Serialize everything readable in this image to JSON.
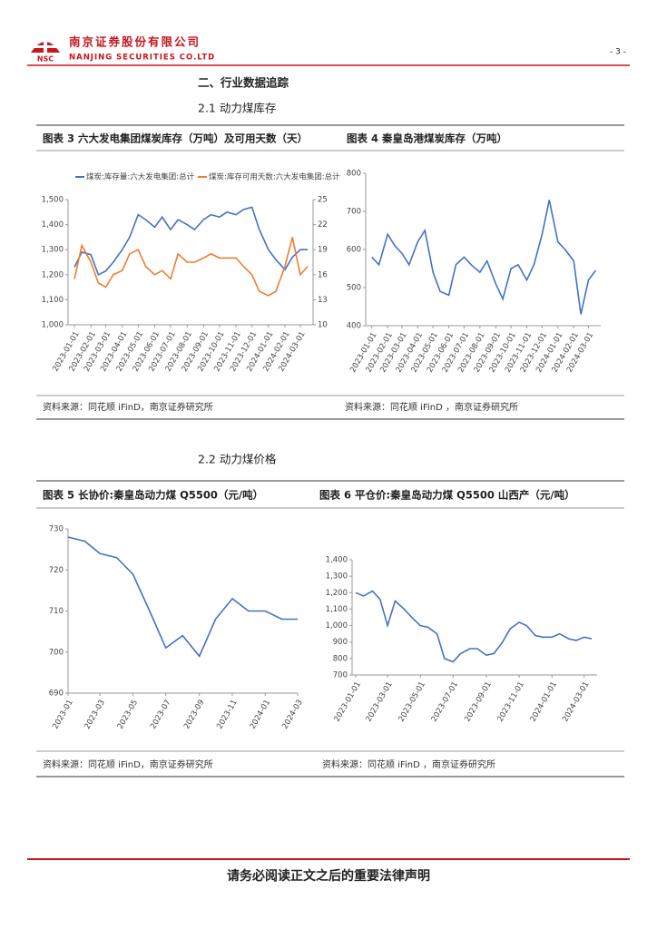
{
  "header": {
    "logo_text": "NSC",
    "company": "南京证券股份有限公司",
    "company_en": "NANJING SECURITIES CO.LTD",
    "page": "- 3 -"
  },
  "section": "二、行业数据追踪",
  "subsections": [
    "2.1 动力煤库存",
    "2.2 动力煤价格"
  ],
  "footer": "请务必阅读正文之后的重要法律声明",
  "chart_data": [
    {
      "type": "line",
      "title": "图表 3  六大发电集团煤炭库存（万吨）及可用天数（天）",
      "source": "资料来源：同花顺 iFinD，南京证券研究所",
      "x": [
        "2023-01-01",
        "2023-01-15",
        "2023-02-01",
        "2023-02-15",
        "2023-03-01",
        "2023-03-15",
        "2023-04-01",
        "2023-04-15",
        "2023-05-01",
        "2023-05-15",
        "2023-06-01",
        "2023-06-15",
        "2023-07-01",
        "2023-07-15",
        "2023-08-01",
        "2023-08-15",
        "2023-09-01",
        "2023-09-15",
        "2023-10-01",
        "2023-10-15",
        "2023-11-01",
        "2023-11-15",
        "2023-12-01",
        "2023-12-15",
        "2024-01-01",
        "2024-01-15",
        "2024-02-01",
        "2024-02-15",
        "2024-03-01",
        "2024-03-15"
      ],
      "xlim": [
        "2022-12-20",
        "2024-03-25"
      ],
      "xticks": [
        "2023-01-01",
        "2023-02-01",
        "2023-03-01",
        "2023-04-01",
        "2023-05-01",
        "2023-06-01",
        "2023-07-01",
        "2023-08-01",
        "2023-09-01",
        "2023-10-01",
        "2023-11-01",
        "2023-12-01",
        "2024-01-01",
        "2024-02-01",
        "2024-03-01"
      ],
      "ylim": [
        1000,
        1500
      ],
      "yticks": [
        {
          "value": 1000,
          "label": "1,000"
        },
        {
          "value": 1100,
          "label": "1,100"
        },
        {
          "value": 1200,
          "label": "1,200"
        },
        {
          "value": 1300,
          "label": "1,300"
        },
        {
          "value": 1400,
          "label": "1,400"
        },
        {
          "value": 1500,
          "label": "1,500"
        }
      ],
      "y2lim": [
        10,
        25
      ],
      "y2ticks": [
        10,
        13,
        16,
        19,
        22,
        25
      ],
      "legend": "top",
      "series": [
        {
          "name": "煤炭:库存量:六大发电集团:总计",
          "color": "#4472c4",
          "values": [
            1230,
            1290,
            1280,
            1200,
            1215,
            1250,
            1300,
            1350,
            1440,
            1420,
            1390,
            1430,
            1380,
            1420,
            1400,
            1380,
            1420,
            1440,
            1430,
            1450,
            1440,
            1460,
            1470,
            1380,
            1300,
            1260,
            1220,
            1270,
            1300,
            1300
          ]
        },
        {
          "name": "煤炭:库存可用天数:六大发电集团:总计",
          "color": "#ed7d31",
          "axis": "y2",
          "values": [
            15.5,
            19.5,
            17.5,
            15,
            14.5,
            16,
            16.5,
            18.5,
            19,
            17,
            16,
            16.5,
            15.5,
            18.5,
            17.5,
            17.5,
            18,
            18.5,
            18,
            18,
            18,
            17,
            16,
            14,
            13.5,
            14,
            17,
            20.5,
            16,
            17
          ]
        }
      ]
    },
    {
      "type": "line",
      "title": "图表 4  秦皇岛港煤炭库存（万吨）",
      "source": "资料来源：同花顺 iFinD ，南京证券研究所",
      "x": [
        "2023-01-01",
        "2023-01-15",
        "2023-02-01",
        "2023-02-15",
        "2023-03-01",
        "2023-03-15",
        "2023-04-01",
        "2023-04-15",
        "2023-05-01",
        "2023-05-15",
        "2023-06-01",
        "2023-06-15",
        "2023-07-01",
        "2023-07-15",
        "2023-08-01",
        "2023-08-15",
        "2023-09-01",
        "2023-09-15",
        "2023-10-01",
        "2023-10-15",
        "2023-11-01",
        "2023-11-15",
        "2023-12-01",
        "2023-12-15",
        "2024-01-01",
        "2024-01-15",
        "2024-02-01",
        "2024-02-15",
        "2024-03-01",
        "2024-03-15"
      ],
      "xlim": [
        "2022-12-20",
        "2024-03-25"
      ],
      "xticks": [
        "2023-01-01",
        "2023-02-01",
        "2023-03-01",
        "2023-04-01",
        "2023-05-01",
        "2023-06-01",
        "2023-07-01",
        "2023-08-01",
        "2023-09-01",
        "2023-10-01",
        "2023-11-01",
        "2023-12-01",
        "2024-01-01",
        "2024-02-01",
        "2024-03-01"
      ],
      "ylim": [
        400,
        800
      ],
      "yticks": [
        400,
        500,
        600,
        700,
        800
      ],
      "series": [
        {
          "color": "#4472c4",
          "values": [
            580,
            560,
            640,
            610,
            590,
            560,
            620,
            650,
            540,
            490,
            480,
            560,
            580,
            560,
            540,
            570,
            510,
            470,
            550,
            560,
            520,
            560,
            640,
            730,
            620,
            600,
            570,
            430,
            520,
            545
          ]
        }
      ]
    },
    {
      "type": "line",
      "title": "图表 5  长协价:秦皇岛动力煤 Q5500（元/吨）",
      "source": "资料来源：同花顺 iFinD，南京证券研究所",
      "x": [
        "2023-01",
        "2023-02",
        "2023-03",
        "2023-04",
        "2023-05",
        "2023-06",
        "2023-07",
        "2023-08",
        "2023-09",
        "2023-10",
        "2023-11",
        "2023-12",
        "2024-01",
        "2024-02",
        "2024-03"
      ],
      "xlim": [
        "2023-01",
        "2024-03"
      ],
      "xticks": [
        "2023-01",
        "2023-03",
        "2023-05",
        "2023-07",
        "2023-09",
        "2023-11",
        "2024-01",
        "2024-03"
      ],
      "ylim": [
        690,
        730
      ],
      "yticks": [
        690,
        700,
        710,
        720,
        730
      ],
      "series": [
        {
          "color": "#4472c4",
          "values": [
            728,
            727,
            724,
            723,
            719,
            710,
            701,
            704,
            699,
            708,
            713,
            710,
            710,
            708,
            708
          ]
        }
      ]
    },
    {
      "type": "line",
      "title": "图表 6  平仓价:秦皇岛动力煤 Q5500 山西产（元/吨）",
      "source": "资料来源：同花顺 iFinD ，南京证券研究所",
      "x": [
        "2023-01-01",
        "2023-01-15",
        "2023-02-01",
        "2023-02-15",
        "2023-03-01",
        "2023-03-15",
        "2023-04-01",
        "2023-04-15",
        "2023-05-01",
        "2023-05-15",
        "2023-06-01",
        "2023-06-15",
        "2023-07-01",
        "2023-07-15",
        "2023-08-01",
        "2023-08-15",
        "2023-09-01",
        "2023-09-15",
        "2023-10-01",
        "2023-10-15",
        "2023-11-01",
        "2023-11-15",
        "2023-12-01",
        "2023-12-15",
        "2024-01-01",
        "2024-01-15",
        "2024-02-01",
        "2024-02-15",
        "2024-03-01",
        "2024-03-15"
      ],
      "xlim": [
        "2022-12-25",
        "2024-03-25"
      ],
      "xticks": [
        "2023-01-01",
        "2023-03-01",
        "2023-05-01",
        "2023-07-01",
        "2023-09-01",
        "2023-11-01",
        "2024-01-01",
        "2024-03-01"
      ],
      "ylim": [
        700,
        1400
      ],
      "yticks": [
        700,
        800,
        900,
        {
          "value": 1000,
          "label": "1,000"
        },
        {
          "value": 1100,
          "label": "1,100"
        },
        {
          "value": 1200,
          "label": "1,200"
        },
        {
          "value": 1300,
          "label": "1,300"
        },
        {
          "value": 1400,
          "label": "1,400"
        }
      ],
      "series": [
        {
          "color": "#4472c4",
          "values": [
            1200,
            1180,
            1210,
            1160,
            1000,
            1150,
            1100,
            1050,
            1000,
            990,
            950,
            800,
            780,
            830,
            860,
            860,
            820,
            830,
            900,
            980,
            1020,
            1000,
            940,
            930,
            930,
            950,
            920,
            910,
            930,
            920
          ]
        }
      ]
    }
  ]
}
